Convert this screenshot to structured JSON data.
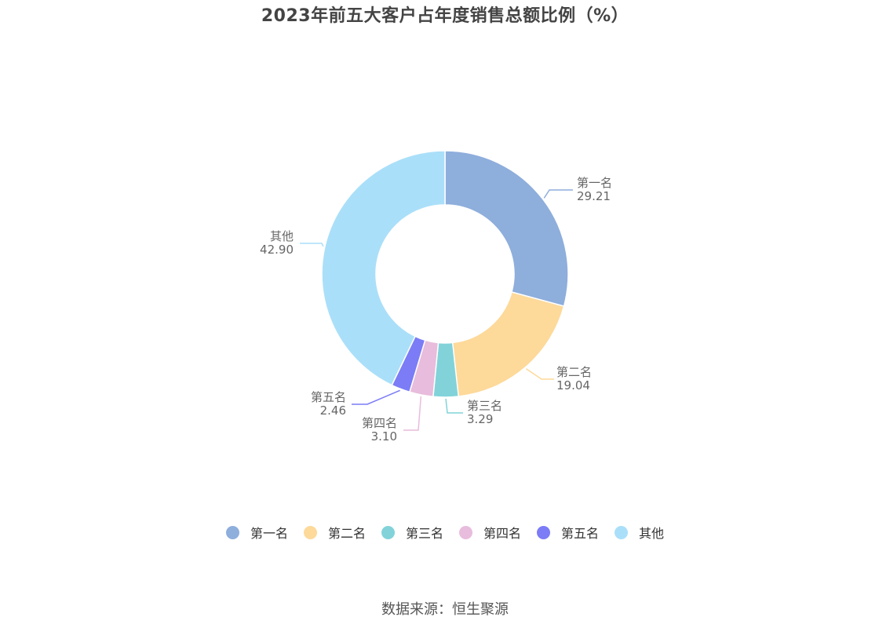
{
  "chart_data": {
    "type": "pie",
    "style": "donut",
    "title": "2023年前五大客户占年度销售总额比例（%）",
    "slices": [
      {
        "name": "第一名",
        "value": 29.21,
        "value_label": "29.21",
        "color": "#8eaedc"
      },
      {
        "name": "第二名",
        "value": 19.04,
        "value_label": "19.04",
        "color": "#fdd99a"
      },
      {
        "name": "第三名",
        "value": 3.29,
        "value_label": "3.29",
        "color": "#81d3d9"
      },
      {
        "name": "第四名",
        "value": 3.1,
        "value_label": "3.10",
        "color": "#e8bcdc"
      },
      {
        "name": "第五名",
        "value": 2.46,
        "value_label": "2.46",
        "color": "#7b7cf6"
      },
      {
        "name": "其他",
        "value": 42.9,
        "value_label": "42.90",
        "color": "#aadff9"
      }
    ],
    "legend_position": "bottom"
  },
  "source": "数据来源：恒生聚源"
}
